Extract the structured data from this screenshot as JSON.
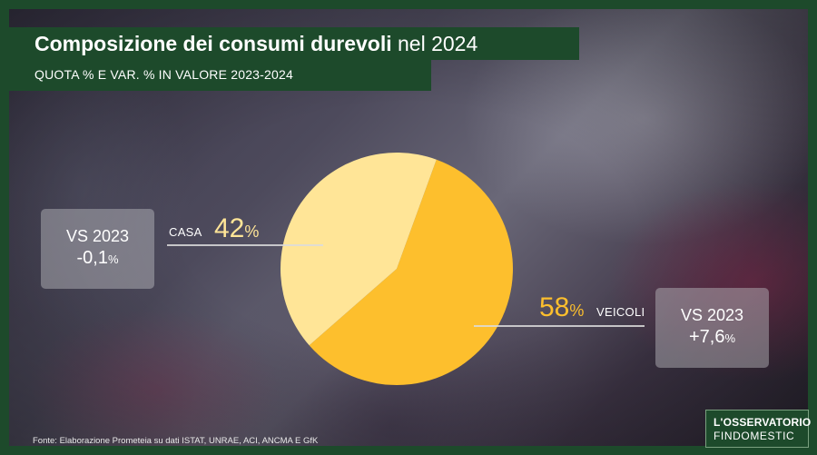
{
  "header": {
    "title_bold": "Composizione dei consumi durevoli",
    "title_regular": "nel 2024",
    "subtitle": "QUOTA % E VAR. % IN VALORE 2023-2024"
  },
  "chart_data": {
    "type": "pie",
    "categories": [
      "CASA",
      "VEICOLI"
    ],
    "values": [
      42,
      58
    ],
    "colors": [
      "#FFE597",
      "#FDBF2D"
    ],
    "share_labels": [
      {
        "number": "42",
        "unit": "%"
      },
      {
        "number": "58",
        "unit": "%"
      }
    ],
    "comparisons": [
      {
        "label": "VS 2023",
        "number": "-0,1",
        "unit": "%"
      },
      {
        "label": "VS 2023",
        "number": "+7,6",
        "unit": "%"
      }
    ]
  },
  "footer": {
    "source": "Fonte: Elaborazione Prometeia su dati ISTAT, UNRAE, ACI, ANCMA E GfK",
    "logo_line1": "L'OSSERVATORIO",
    "logo_line2": "FINDOMESTIC"
  },
  "colors": {
    "frame": "#1d4a2b",
    "casa_label": "#FFE597",
    "veicoli_label": "#FDBF2D"
  }
}
